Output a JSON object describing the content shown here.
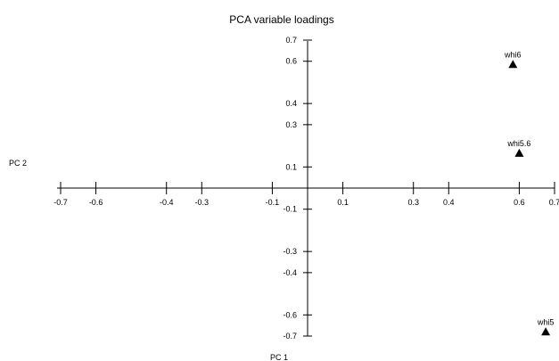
{
  "chart_data": {
    "type": "scatter",
    "title": "PCA variable loadings",
    "xlabel": "PC 1",
    "ylabel": "PC 2",
    "xlim": [
      -0.7,
      0.7
    ],
    "ylim": [
      -0.7,
      0.7
    ],
    "x_ticks": [
      "-0.7",
      "-0.6",
      "-0.4",
      "-0.3",
      "-0.1",
      "0.1",
      "0.3",
      "0.4",
      "0.6",
      "0.7"
    ],
    "y_ticks": [
      "0.7",
      "0.6",
      "0.4",
      "0.3",
      "0.1",
      "-0.1",
      "-0.3",
      "-0.4",
      "-0.6",
      "-0.7"
    ],
    "marker": "triangle",
    "grid": false,
    "points": [
      {
        "label": "whi6",
        "x": 0.582,
        "y": 0.585
      },
      {
        "label": "whi5.6",
        "x": 0.6,
        "y": 0.165
      },
      {
        "label": "whi5",
        "x": 0.675,
        "y": -0.68
      }
    ]
  }
}
